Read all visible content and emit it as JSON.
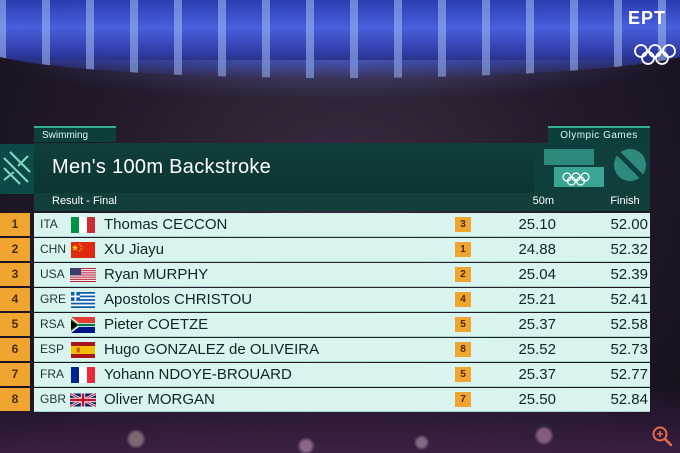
{
  "broadcaster": "ΕΡΤ",
  "sport": "Swimming",
  "games_label": "Olympic Games",
  "event_title": "Men's 100m Backstroke",
  "result_label": "Result - Final",
  "split_header": "50m",
  "finish_header": "Finish",
  "colors": {
    "panel_dark": "#0f3f3d",
    "row_bg": "#d9f4ee",
    "accent_orange": "#f0a531",
    "accent_green": "#33b08f"
  },
  "results": [
    {
      "rank": "1",
      "noc": "ITA",
      "flag": "italy-flag",
      "athlete": "Thomas CECCON",
      "split_rank": "3",
      "split": "25.10",
      "finish": "52.00"
    },
    {
      "rank": "2",
      "noc": "CHN",
      "flag": "china-flag",
      "athlete": "XU Jiayu",
      "split_rank": "1",
      "split": "24.88",
      "finish": "52.32"
    },
    {
      "rank": "3",
      "noc": "USA",
      "flag": "usa-flag",
      "athlete": "Ryan MURPHY",
      "split_rank": "2",
      "split": "25.04",
      "finish": "52.39"
    },
    {
      "rank": "4",
      "noc": "GRE",
      "flag": "greece-flag",
      "athlete": "Apostolos CHRISTOU",
      "split_rank": "4",
      "split": "25.21",
      "finish": "52.41"
    },
    {
      "rank": "5",
      "noc": "RSA",
      "flag": "south-africa-flag",
      "athlete": "Pieter COETZE",
      "split_rank": "5",
      "split": "25.37",
      "finish": "52.58"
    },
    {
      "rank": "6",
      "noc": "ESP",
      "flag": "spain-flag",
      "athlete": "Hugo GONZALEZ de OLIVEIRA",
      "split_rank": "8",
      "split": "25.52",
      "finish": "52.73"
    },
    {
      "rank": "7",
      "noc": "FRA",
      "flag": "france-flag",
      "athlete": "Yohann NDOYE-BROUARD",
      "split_rank": "5",
      "split": "25.37",
      "finish": "52.77"
    },
    {
      "rank": "8",
      "noc": "GBR",
      "flag": "uk-flag",
      "athlete": "Oliver MORGAN",
      "split_rank": "7",
      "split": "25.50",
      "finish": "52.84"
    }
  ]
}
